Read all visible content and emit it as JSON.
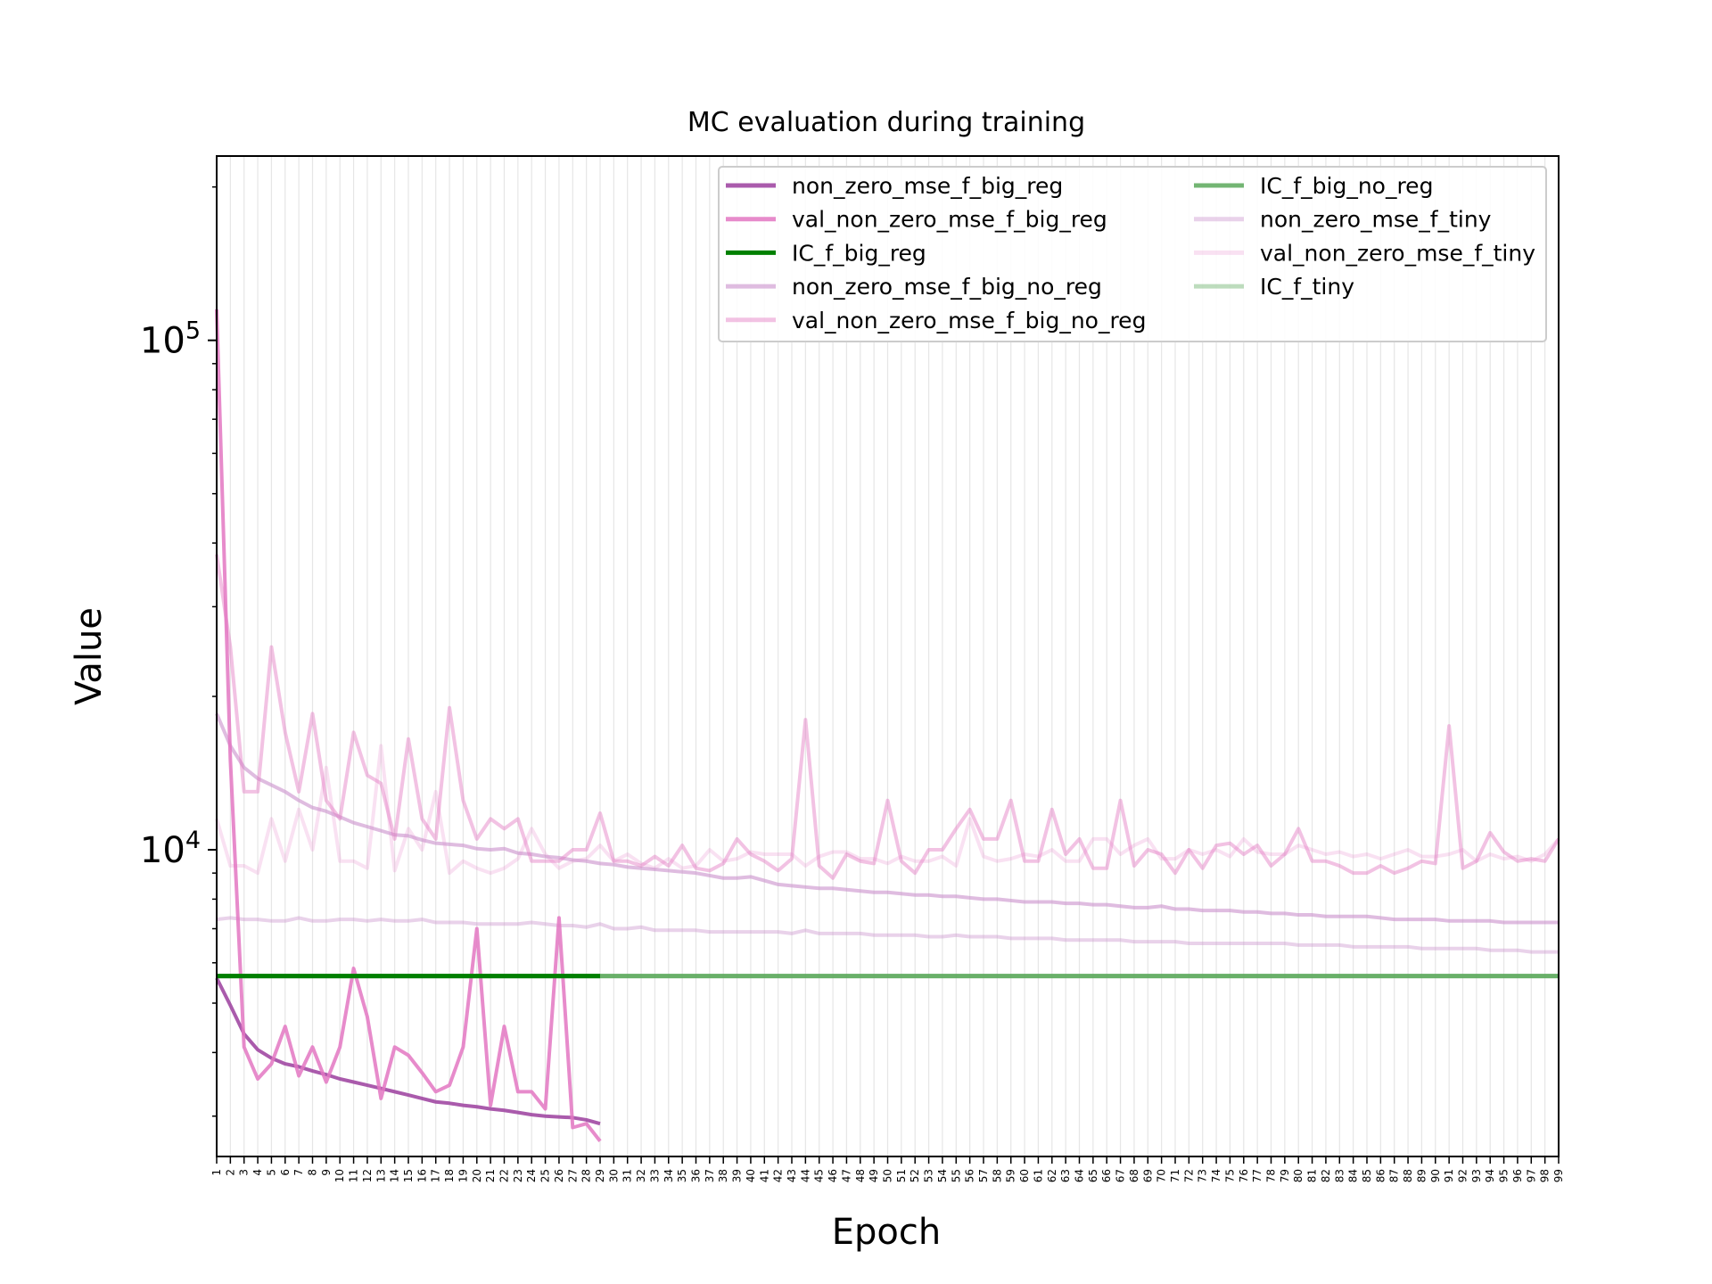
{
  "chart_data": {
    "type": "line",
    "title": "MC evaluation during training",
    "xlabel": "Epoch",
    "ylabel": "Value",
    "yscale": "log",
    "ylim": [
      2500,
      230000
    ],
    "xlim": [
      1,
      99
    ],
    "grid": "vertical",
    "legend_position": "top-right",
    "y_ticks": [
      {
        "value": 10000,
        "base": "10",
        "exp": "4"
      },
      {
        "value": 100000,
        "base": "10",
        "exp": "5"
      }
    ],
    "x_ticks": [
      "1",
      "2",
      "3",
      "4",
      "5",
      "6",
      "7",
      "8",
      "9",
      "10",
      "11",
      "12",
      "13",
      "14",
      "15",
      "16",
      "17",
      "18",
      "19",
      "20",
      "21",
      "22",
      "23",
      "24",
      "25",
      "26",
      "27",
      "28",
      "29",
      "30",
      "31",
      "32",
      "33",
      "34",
      "35",
      "36",
      "37",
      "38",
      "39",
      "40",
      "41",
      "42",
      "43",
      "44",
      "45",
      "46",
      "47",
      "48",
      "49",
      "50",
      "51",
      "52",
      "53",
      "54",
      "55",
      "56",
      "57",
      "58",
      "59",
      "60",
      "61",
      "62",
      "63",
      "64",
      "65",
      "66",
      "67",
      "68",
      "69",
      "70",
      "71",
      "72",
      "73",
      "74",
      "75",
      "76",
      "77",
      "78",
      "79",
      "80",
      "81",
      "82",
      "83",
      "84",
      "85",
      "86",
      "87",
      "88",
      "89",
      "90",
      "91",
      "92",
      "93",
      "94",
      "95",
      "96",
      "97",
      "98",
      "99"
    ],
    "series": [
      {
        "name": "non_zero_mse_f_big_reg",
        "color": "#9b3e9e",
        "opacity": 0.85,
        "values": [
          5600,
          4950,
          4350,
          4050,
          3900,
          3800,
          3750,
          3680,
          3620,
          3550,
          3500,
          3450,
          3400,
          3350,
          3300,
          3250,
          3200,
          3180,
          3150,
          3130,
          3100,
          3080,
          3050,
          3020,
          3000,
          2990,
          2980,
          2950,
          2900
        ]
      },
      {
        "name": "val_non_zero_mse_f_big_reg",
        "color": "#e377c2",
        "opacity": 0.85,
        "values": [
          115000,
          15000,
          4100,
          3550,
          3800,
          4500,
          3600,
          4100,
          3500,
          4100,
          5850,
          4700,
          3250,
          4100,
          3950,
          3650,
          3350,
          3450,
          4100,
          7000,
          3150,
          4500,
          3350,
          3350,
          3100,
          7350,
          2850,
          2900,
          2680
        ]
      },
      {
        "name": "IC_f_big_reg",
        "color": "#008000",
        "opacity": 1,
        "values": [
          5650,
          5650,
          5650,
          5650,
          5650,
          5650,
          5650,
          5650,
          5650,
          5650,
          5650,
          5650,
          5650,
          5650,
          5650,
          5650,
          5650,
          5650,
          5650,
          5650,
          5650,
          5650,
          5650,
          5650,
          5650,
          5650,
          5650,
          5650,
          5650
        ]
      },
      {
        "name": "non_zero_mse_f_big_no_reg",
        "color": "#c98fcb",
        "opacity": 0.6,
        "values": [
          18500,
          16000,
          14500,
          13800,
          13400,
          13000,
          12500,
          12100,
          11900,
          11600,
          11300,
          11100,
          10900,
          10700,
          10650,
          10450,
          10300,
          10250,
          10200,
          10050,
          10000,
          10050,
          9850,
          9800,
          9700,
          9650,
          9550,
          9500,
          9400,
          9350,
          9250,
          9200,
          9150,
          9100,
          9050,
          9000,
          8900,
          8800,
          8800,
          8850,
          8700,
          8550,
          8500,
          8450,
          8400,
          8400,
          8350,
          8300,
          8250,
          8250,
          8200,
          8150,
          8150,
          8100,
          8100,
          8050,
          8000,
          8000,
          7950,
          7900,
          7900,
          7900,
          7850,
          7850,
          7800,
          7800,
          7750,
          7700,
          7700,
          7750,
          7650,
          7650,
          7600,
          7600,
          7600,
          7550,
          7550,
          7500,
          7500,
          7450,
          7450,
          7400,
          7400,
          7400,
          7400,
          7350,
          7300,
          7300,
          7300,
          7300,
          7250,
          7250,
          7250,
          7250,
          7200,
          7200,
          7200,
          7200,
          7200
        ]
      },
      {
        "name": "val_non_zero_mse_f_big_no_reg",
        "color": "#e377c2",
        "opacity": 0.45,
        "values": [
          38000,
          25000,
          13000,
          13000,
          25000,
          17000,
          13000,
          18500,
          12500,
          11500,
          17000,
          14000,
          13500,
          10500,
          16500,
          11500,
          10500,
          19000,
          12500,
          10500,
          11500,
          11000,
          11500,
          9500,
          9500,
          9500,
          10000,
          10000,
          11800,
          9500,
          9500,
          9300,
          9700,
          9300,
          10200,
          9200,
          9100,
          9400,
          10500,
          9800,
          9500,
          9100,
          9600,
          18000,
          9300,
          8800,
          9800,
          9500,
          9400,
          12500,
          9500,
          9000,
          10000,
          10000,
          11000,
          12000,
          10500,
          10500,
          12500,
          9500,
          9500,
          12000,
          9800,
          10500,
          9200,
          9200,
          12500,
          9300,
          10000,
          9800,
          9000,
          10000,
          9200,
          10200,
          10300,
          9800,
          10200,
          9300,
          9800,
          11000,
          9500,
          9500,
          9300,
          9000,
          9000,
          9300,
          9000,
          9200,
          9500,
          9400,
          17500,
          9200,
          9500,
          10800,
          9900,
          9500,
          9600,
          9500,
          10500
        ]
      },
      {
        "name": "IC_f_big_no_reg",
        "color": "#5aa85a",
        "opacity": 0.85,
        "values": [
          5650,
          5650,
          5650,
          5650,
          5650,
          5650,
          5650,
          5650,
          5650,
          5650,
          5650,
          5650,
          5650,
          5650,
          5650,
          5650,
          5650,
          5650,
          5650,
          5650,
          5650,
          5650,
          5650,
          5650,
          5650,
          5650,
          5650,
          5650,
          5650,
          5650,
          5650,
          5650,
          5650,
          5650,
          5650,
          5650,
          5650,
          5650,
          5650,
          5650,
          5650,
          5650,
          5650,
          5650,
          5650,
          5650,
          5650,
          5650,
          5650,
          5650,
          5650,
          5650,
          5650,
          5650,
          5650,
          5650,
          5650,
          5650,
          5650,
          5650,
          5650,
          5650,
          5650,
          5650,
          5650,
          5650,
          5650,
          5650,
          5650,
          5650,
          5650,
          5650,
          5650,
          5650,
          5650,
          5650,
          5650,
          5650,
          5650,
          5650,
          5650,
          5650,
          5650,
          5650,
          5650,
          5650,
          5650,
          5650,
          5650,
          5650,
          5650,
          5650,
          5650,
          5650,
          5650,
          5650,
          5650,
          5650,
          5650
        ]
      },
      {
        "name": "non_zero_mse_f_tiny",
        "color": "#c98fcb",
        "opacity": 0.4,
        "values": [
          7300,
          7350,
          7300,
          7300,
          7250,
          7250,
          7350,
          7250,
          7250,
          7300,
          7300,
          7250,
          7300,
          7250,
          7250,
          7300,
          7200,
          7200,
          7200,
          7150,
          7150,
          7150,
          7150,
          7200,
          7150,
          7100,
          7100,
          7050,
          7150,
          7000,
          7000,
          7050,
          6950,
          6950,
          6950,
          6950,
          6900,
          6900,
          6900,
          6900,
          6900,
          6900,
          6850,
          6950,
          6850,
          6850,
          6850,
          6850,
          6800,
          6800,
          6800,
          6800,
          6750,
          6750,
          6800,
          6750,
          6750,
          6750,
          6700,
          6700,
          6700,
          6700,
          6650,
          6650,
          6650,
          6650,
          6650,
          6600,
          6600,
          6600,
          6600,
          6550,
          6550,
          6550,
          6550,
          6550,
          6550,
          6550,
          6550,
          6500,
          6500,
          6500,
          6500,
          6450,
          6450,
          6450,
          6450,
          6450,
          6400,
          6400,
          6400,
          6400,
          6400,
          6350,
          6350,
          6350,
          6300,
          6300,
          6300
        ]
      },
      {
        "name": "val_non_zero_mse_f_tiny",
        "color": "#e377c2",
        "opacity": 0.22,
        "values": [
          11500,
          9300,
          9300,
          9000,
          11500,
          9500,
          12000,
          10000,
          14500,
          9500,
          9500,
          9200,
          16000,
          9100,
          11000,
          10000,
          13000,
          9000,
          9500,
          9200,
          9000,
          9200,
          9600,
          11000,
          9800,
          9200,
          9500,
          9600,
          10200,
          9500,
          9800,
          9400,
          9200,
          9600,
          9200,
          9300,
          10000,
          9500,
          9600,
          9900,
          9800,
          9800,
          9800,
          9300,
          9700,
          9900,
          9900,
          9600,
          9600,
          9400,
          9700,
          9500,
          9500,
          9700,
          9300,
          11500,
          9700,
          9500,
          9600,
          9800,
          9700,
          10000,
          9500,
          9500,
          10500,
          10500,
          9800,
          10200,
          10500,
          9600,
          9600,
          10000,
          9800,
          10000,
          9700,
          10500,
          9900,
          9800,
          9800,
          10200,
          10000,
          9800,
          9900,
          9700,
          9800,
          9600,
          9800,
          10000,
          9700,
          9700,
          9800,
          10000,
          9500,
          9800,
          9600,
          9700,
          9500,
          9800,
          10500
        ]
      },
      {
        "name": "IC_f_tiny",
        "color": "#5aa85a",
        "opacity": 0.4,
        "values": [
          5650,
          5650,
          5650,
          5650,
          5650,
          5650,
          5650,
          5650,
          5650,
          5650,
          5650,
          5650,
          5650,
          5650,
          5650,
          5650,
          5650,
          5650,
          5650,
          5650,
          5650,
          5650,
          5650,
          5650,
          5650,
          5650,
          5650,
          5650,
          5650,
          5650,
          5650,
          5650,
          5650,
          5650,
          5650,
          5650,
          5650,
          5650,
          5650,
          5650,
          5650,
          5650,
          5650,
          5650,
          5650,
          5650,
          5650,
          5650,
          5650,
          5650,
          5650,
          5650,
          5650,
          5650,
          5650,
          5650,
          5650,
          5650,
          5650,
          5650,
          5650,
          5650,
          5650,
          5650,
          5650,
          5650,
          5650,
          5650,
          5650,
          5650,
          5650,
          5650,
          5650,
          5650,
          5650,
          5650,
          5650,
          5650,
          5650,
          5650,
          5650,
          5650,
          5650,
          5650,
          5650,
          5650,
          5650,
          5650,
          5650,
          5650,
          5650,
          5650,
          5650,
          5650,
          5650,
          5650,
          5650,
          5650,
          5650
        ]
      }
    ],
    "legend_order": [
      0,
      1,
      2,
      3,
      4,
      5,
      6,
      7,
      8
    ]
  }
}
